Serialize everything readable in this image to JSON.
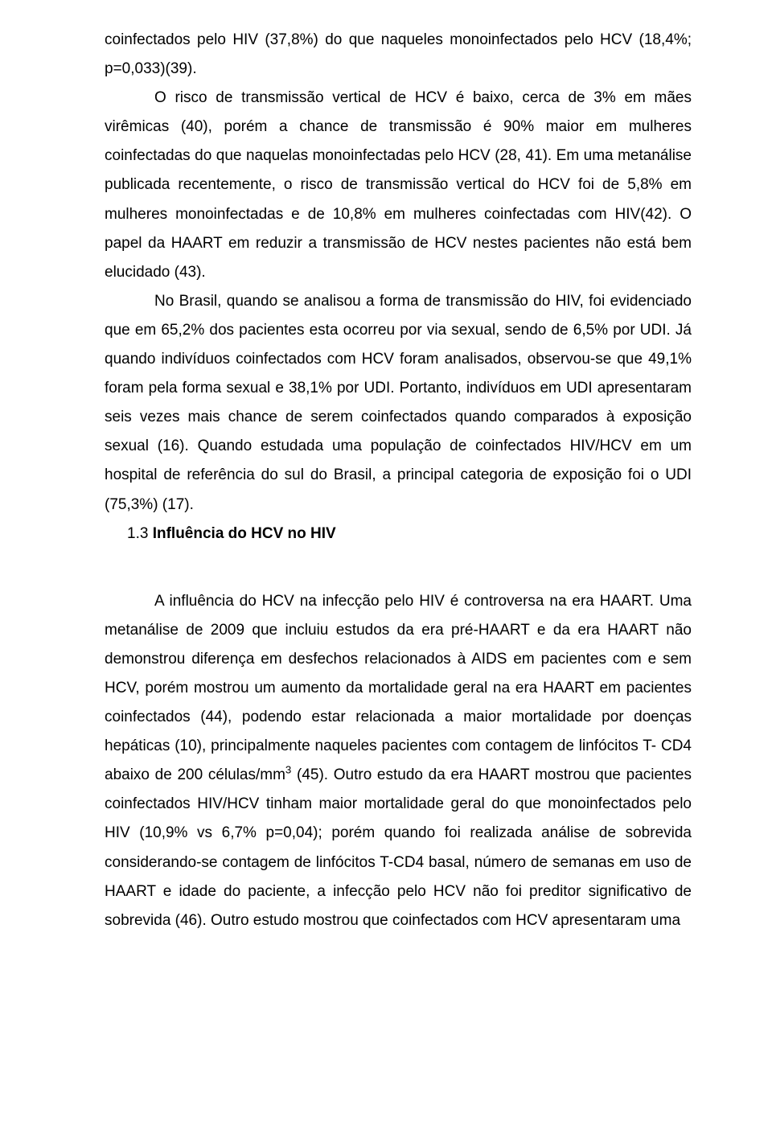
{
  "p1": "coinfectados pelo HIV (37,8%) do que naqueles monoinfectados pelo HCV (18,4%; p=0,033)(39).",
  "p2": "O risco de transmissão vertical de HCV é baixo, cerca de 3% em mães virêmicas (40), porém a chance de transmissão é 90% maior em mulheres coinfectadas do que naquelas monoinfectadas pelo HCV (28, 41). Em uma metanálise publicada recentemente, o risco de transmissão vertical do HCV foi de 5,8% em mulheres monoinfectadas e de 10,8% em mulheres coinfectadas com HIV(42). O papel da HAART em reduzir a transmissão de HCV nestes pacientes não está bem elucidado (43).",
  "p3": "No Brasil, quando se analisou a forma de transmissão do HIV, foi evidenciado que em 65,2% dos pacientes esta ocorreu por via sexual, sendo de 6,5% por UDI. Já quando indivíduos coinfectados com HCV foram analisados, observou-se que 49,1% foram pela forma sexual e 38,1% por UDI. Portanto, indivíduos em UDI apresentaram seis vezes mais chance de serem coinfectados quando comparados à exposição sexual (16). Quando estudada uma população de coinfectados HIV/HCV em um hospital de referência do sul do Brasil, a principal categoria de exposição foi o UDI (75,3%) (17).",
  "heading_num": "1.3 ",
  "heading_title": "Influência do HCV no HIV",
  "p4_a": "A influência do HCV na infecção pelo HIV é controversa na era HAART. Uma metanálise de 2009 que incluiu estudos da era pré-HAART e da era HAART não demonstrou diferença em desfechos relacionados à AIDS em pacientes com e sem HCV, porém mostrou um aumento da mortalidade geral na era HAART em pacientes coinfectados (44), podendo estar relacionada a maior mortalidade por doenças hepáticas (10), principalmente naqueles pacientes com contagem de linfócitos T- CD4 abaixo de 200 células/mm",
  "p4_sup": "3",
  "p4_b": " (45). Outro estudo da era HAART mostrou que pacientes coinfectados HIV/HCV tinham maior mortalidade geral do que monoinfectados pelo HIV (10,9% vs 6,7% p=0,04); porém quando foi realizada análise de sobrevida considerando-se contagem de linfócitos T-CD4 basal, número de semanas em uso de HAART e idade do paciente, a infecção pelo HCV não foi preditor significativo de sobrevida (46). Outro estudo mostrou que coinfectados com HCV apresentaram uma"
}
